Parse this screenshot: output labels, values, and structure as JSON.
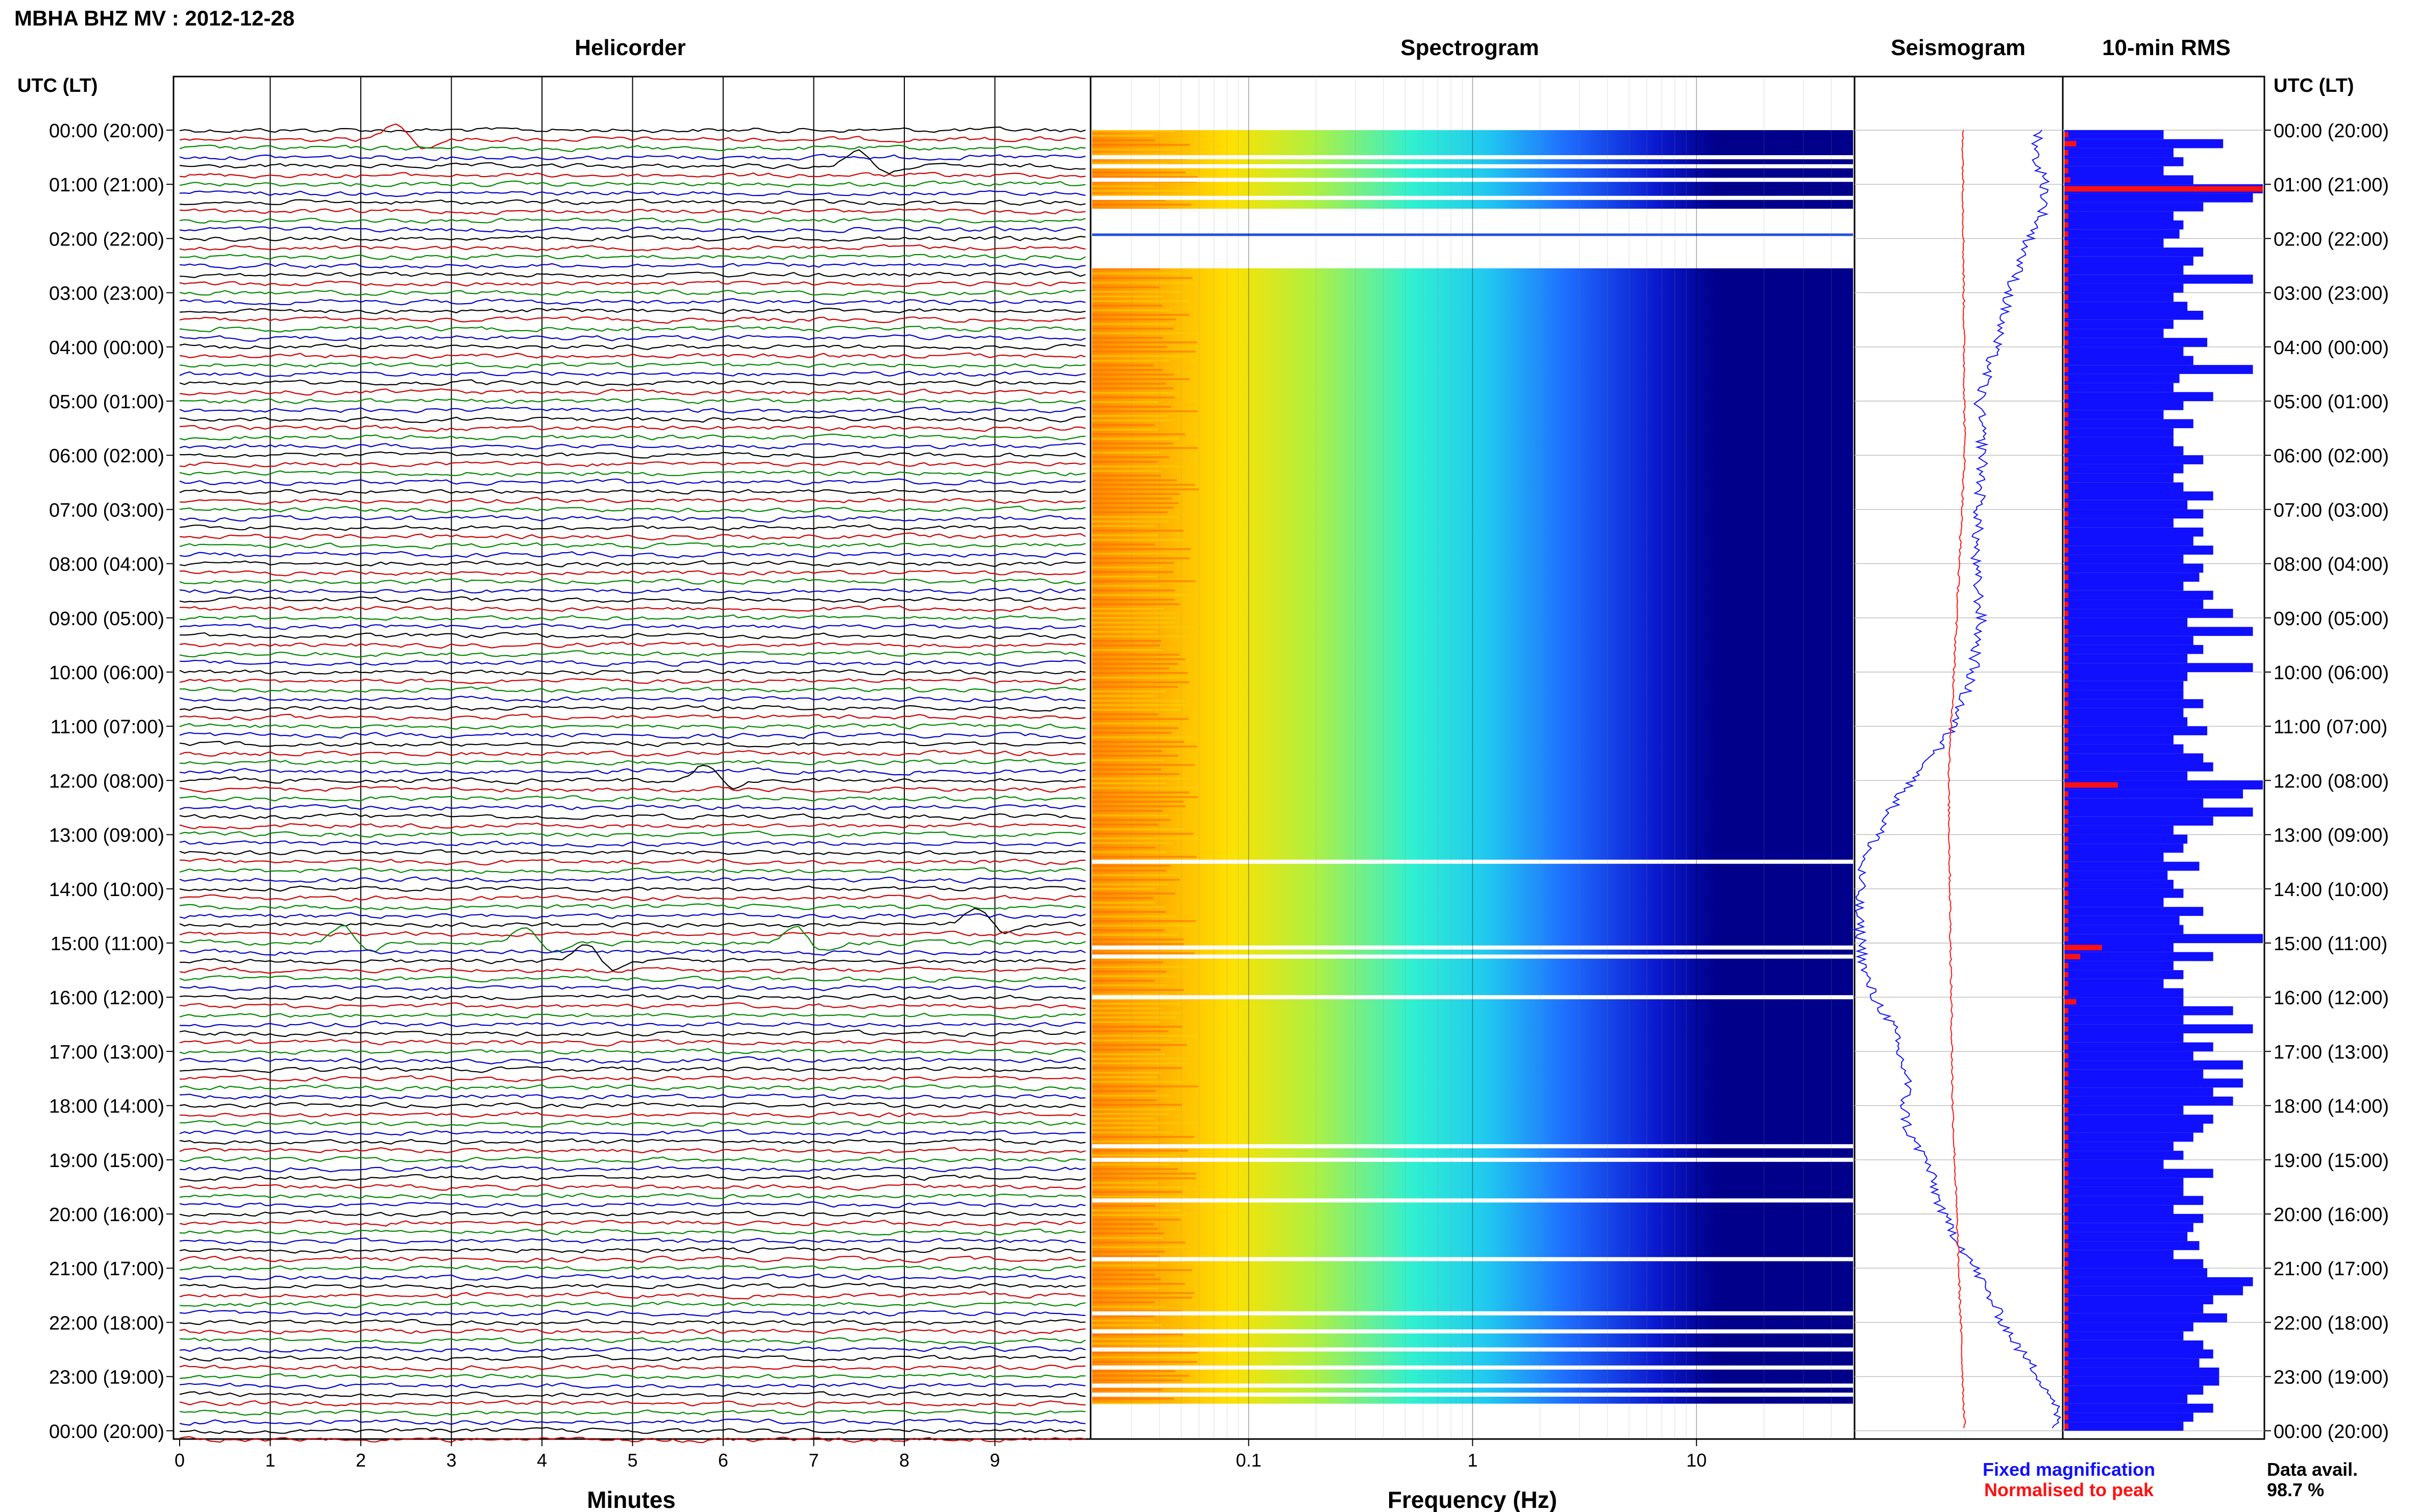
{
  "header": {
    "station_title": "MBHA BHZ MV : 2012-12-28",
    "utc_lt_label": "UTC (LT)"
  },
  "panels": {
    "helicorder_title": "Helicorder",
    "spectrogram_title": "Spectrogram",
    "seismogram_title": "Seismogram",
    "rms_title": "10-min RMS"
  },
  "legend": {
    "fixed_label": "Fixed magnification",
    "fixed_color": "#1010ff",
    "normalised_label": "Normalised to peak",
    "normalised_color": "#ff1010",
    "data_avail_label": "Data avail.",
    "data_avail_value": "98.7 %"
  },
  "colors": {
    "trace_colors": [
      "#000000",
      "#cc0000",
      "#008800",
      "#0000cc"
    ],
    "rms_fixed": "#1010ff",
    "rms_normalised": "#ff1010",
    "spectrogram_background": "#00008b"
  },
  "chart_data": [
    {
      "type": "line",
      "name": "helicorder",
      "title": "Helicorder",
      "xlabel": "Minutes",
      "ylabel": "UTC (LT)",
      "xlim": [
        0,
        10
      ],
      "x_ticks": [
        "0",
        "1",
        "2",
        "3",
        "4",
        "5",
        "6",
        "7",
        "8",
        "9"
      ],
      "row_labels": [
        "00:00 (20:00)",
        "01:00 (21:00)",
        "02:00 (22:00)",
        "03:00 (23:00)",
        "04:00 (00:00)",
        "05:00 (01:00)",
        "06:00 (02:00)",
        "07:00 (03:00)",
        "08:00 (04:00)",
        "09:00 (05:00)",
        "10:00 (06:00)",
        "11:00 (07:00)",
        "12:00 (08:00)",
        "13:00 (09:00)",
        "14:00 (10:00)",
        "15:00 (11:00)",
        "16:00 (12:00)",
        "17:00 (13:00)",
        "18:00 (14:00)",
        "19:00 (15:00)",
        "20:00 (16:00)",
        "21:00 (17:00)",
        "22:00 (18:00)",
        "23:00 (19:00)",
        "00:00 (20:00)"
      ],
      "traces_per_hour": 6,
      "events": [
        {
          "time": "00:10",
          "minute": 2.4
        },
        {
          "time": "00:40",
          "minute": 7.5
        },
        {
          "time": "12:00",
          "minute": 5.8
        },
        {
          "time": "14:40",
          "minute": 8.8
        },
        {
          "time": "15:00",
          "minute": 1.8
        },
        {
          "time": "15:00",
          "minute": 3.8
        },
        {
          "time": "15:00",
          "minute": 6.8
        },
        {
          "time": "15:20",
          "minute": 4.5
        }
      ]
    },
    {
      "type": "heatmap",
      "name": "spectrogram",
      "title": "Spectrogram",
      "xlabel": "Frequency (Hz)",
      "x_scale": "log",
      "xlim": [
        0.02,
        50
      ],
      "x_ticks": [
        "0.1",
        "1",
        "10"
      ],
      "gaps_utc": [
        "00:30",
        "00:40",
        "00:55",
        "01:15",
        "01:30",
        "02:00",
        "02:30",
        "13:30",
        "15:05",
        "15:15",
        "16:00",
        "18:45",
        "19:00",
        "19:45",
        "20:50",
        "21:50",
        "22:10",
        "22:30",
        "22:50",
        "23:10",
        "23:20",
        "23:40"
      ]
    },
    {
      "type": "line",
      "name": "seismogram",
      "title": "Seismogram",
      "series": [
        {
          "name": "Fixed magnification",
          "hours": [
            0,
            0.5,
            1,
            1.5,
            2,
            3,
            4,
            5,
            6,
            7,
            8,
            9,
            10,
            10.5,
            11,
            11.5,
            12,
            12.5,
            13,
            13.5,
            14,
            14.5,
            15,
            15.5,
            16,
            16.5,
            17,
            17.5,
            18,
            18.5,
            19,
            19.5,
            20,
            20.5,
            21,
            21.5,
            22,
            22.5,
            23,
            23.5
          ],
          "values": [
            0.9,
            0.88,
            0.93,
            0.92,
            0.85,
            0.75,
            0.68,
            0.6,
            0.62,
            0.6,
            0.58,
            0.61,
            0.57,
            0.52,
            0.47,
            0.39,
            0.27,
            0.17,
            0.1,
            0.02,
            0.01,
            0.0,
            0.02,
            0.03,
            0.08,
            0.17,
            0.2,
            0.25,
            0.23,
            0.25,
            0.34,
            0.38,
            0.42,
            0.5,
            0.58,
            0.65,
            0.72,
            0.8,
            0.9,
            0.98
          ]
        },
        {
          "name": "Normalised to peak",
          "hours": [
            0,
            6,
            12,
            18,
            24
          ],
          "values": [
            0.52,
            0.53,
            0.45,
            0.47,
            0.53
          ]
        }
      ]
    },
    {
      "type": "bar",
      "name": "rms",
      "title": "10-min RMS",
      "orientation": "horizontal",
      "bin_minutes": 10,
      "series": [
        {
          "name": "Fixed magnification",
          "values": [
            0.5,
            0.8,
            0.55,
            0.6,
            0.5,
            0.65,
            1.0,
            0.95,
            0.7,
            0.55,
            0.6,
            0.58,
            0.5,
            0.7,
            0.65,
            0.6,
            0.95,
            0.6,
            0.55,
            0.62,
            0.7,
            0.55,
            0.5,
            0.72,
            0.6,
            0.65,
            0.95,
            0.58,
            0.55,
            0.75,
            0.6,
            0.5,
            0.65,
            0.55,
            0.55,
            0.6,
            0.7,
            0.6,
            0.55,
            0.6,
            0.75,
            0.62,
            0.7,
            0.55,
            0.7,
            0.65,
            0.75,
            0.6,
            0.7,
            0.68,
            0.6,
            0.75,
            0.7,
            0.85,
            0.62,
            0.95,
            0.65,
            0.7,
            0.62,
            0.95,
            0.62,
            0.6,
            0.6,
            0.7,
            0.6,
            0.62,
            0.72,
            0.55,
            0.6,
            0.7,
            0.75,
            0.62,
            1.0,
            0.9,
            0.7,
            0.95,
            0.75,
            0.55,
            0.62,
            0.6,
            0.5,
            0.68,
            0.52,
            0.55,
            0.6,
            0.5,
            0.7,
            0.58,
            0.6,
            1.0,
            0.55,
            0.75,
            0.55,
            0.6,
            0.5,
            0.6,
            0.6,
            0.85,
            0.6,
            0.95,
            0.6,
            0.75,
            0.65,
            0.9,
            0.7,
            0.9,
            0.75,
            0.85,
            0.6,
            0.75,
            0.7,
            0.65,
            0.55,
            0.6,
            0.5,
            0.75,
            0.6,
            0.6,
            0.7,
            0.55,
            0.7,
            0.65,
            0.62,
            0.68,
            0.55,
            0.7,
            0.72,
            0.95,
            0.9,
            0.75,
            0.7,
            0.82,
            0.65,
            0.6,
            0.7,
            0.75,
            0.68,
            0.78,
            0.78,
            0.7,
            0.62,
            0.75,
            0.65,
            0.6
          ]
        },
        {
          "name": "Normalised to peak",
          "values": [
            0.02,
            0.06,
            0.02,
            0.02,
            0.02,
            0.03,
            1.0,
            0.02,
            0.02,
            0.02,
            0.02,
            0.02,
            0.02,
            0.02,
            0.02,
            0.02,
            0.02,
            0.02,
            0.02,
            0.02,
            0.02,
            0.02,
            0.02,
            0.02,
            0.02,
            0.02,
            0.02,
            0.02,
            0.02,
            0.02,
            0.02,
            0.02,
            0.02,
            0.02,
            0.02,
            0.02,
            0.02,
            0.02,
            0.02,
            0.02,
            0.02,
            0.02,
            0.02,
            0.02,
            0.02,
            0.02,
            0.02,
            0.02,
            0.02,
            0.02,
            0.02,
            0.02,
            0.02,
            0.02,
            0.02,
            0.02,
            0.02,
            0.02,
            0.02,
            0.02,
            0.02,
            0.02,
            0.02,
            0.02,
            0.02,
            0.02,
            0.02,
            0.02,
            0.02,
            0.02,
            0.02,
            0.02,
            0.27,
            0.02,
            0.02,
            0.02,
            0.02,
            0.02,
            0.02,
            0.02,
            0.02,
            0.02,
            0.02,
            0.02,
            0.02,
            0.02,
            0.02,
            0.02,
            0.02,
            0.02,
            0.19,
            0.08,
            0.02,
            0.02,
            0.02,
            0.02,
            0.06,
            0.02,
            0.02,
            0.02,
            0.02,
            0.02,
            0.02,
            0.02,
            0.02,
            0.02,
            0.02,
            0.02,
            0.02,
            0.02,
            0.02,
            0.02,
            0.02,
            0.02,
            0.02,
            0.02,
            0.02,
            0.02,
            0.02,
            0.02,
            0.02,
            0.02,
            0.02,
            0.02,
            0.02,
            0.02,
            0.02,
            0.02,
            0.02,
            0.02,
            0.02,
            0.02,
            0.02,
            0.02,
            0.02,
            0.02,
            0.02,
            0.02,
            0.02,
            0.02,
            0.02,
            0.02,
            0.02,
            0.02
          ]
        }
      ]
    }
  ]
}
